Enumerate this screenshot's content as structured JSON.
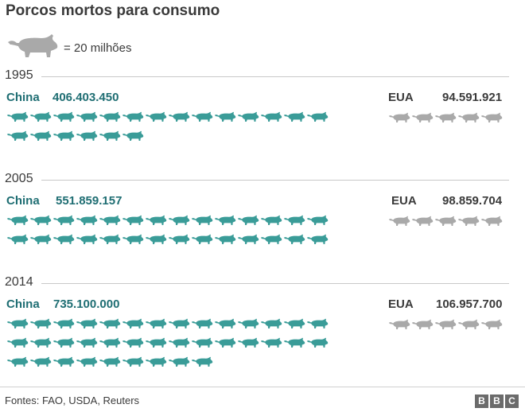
{
  "title": "Porcos mortos para consumo",
  "legend": {
    "label": "= 20 milhões",
    "icon": "pig-icon",
    "unit_value": 20000000
  },
  "colors": {
    "china": "#3a9c98",
    "eua": "#a9a9a9",
    "china_text": "#1f6e73"
  },
  "source": "Fontes: FAO, USDA, Reuters",
  "brand": [
    "B",
    "B",
    "C"
  ],
  "chart_data": {
    "type": "pictogram",
    "title": "Porcos mortos para consumo",
    "unit": "= 20 milhões",
    "years": [
      {
        "year": "1995",
        "series": [
          {
            "name": "China",
            "value": 406403450,
            "value_label": "406.403.450",
            "icons": 20
          },
          {
            "name": "EUA",
            "value": 94591921,
            "value_label": "94.591.921",
            "icons": 5
          }
        ]
      },
      {
        "year": "2005",
        "series": [
          {
            "name": "China",
            "value": 551859157,
            "value_label": "551.859.157",
            "icons": 28
          },
          {
            "name": "EUA",
            "value": 98859704,
            "value_label": "98.859.704",
            "icons": 5
          }
        ]
      },
      {
        "year": "2014",
        "series": [
          {
            "name": "China",
            "value": 735100000,
            "value_label": "735.100.000",
            "icons": 37
          },
          {
            "name": "EUA",
            "value": 106957700,
            "value_label": "106.957.700",
            "icons": 5
          }
        ]
      }
    ]
  }
}
